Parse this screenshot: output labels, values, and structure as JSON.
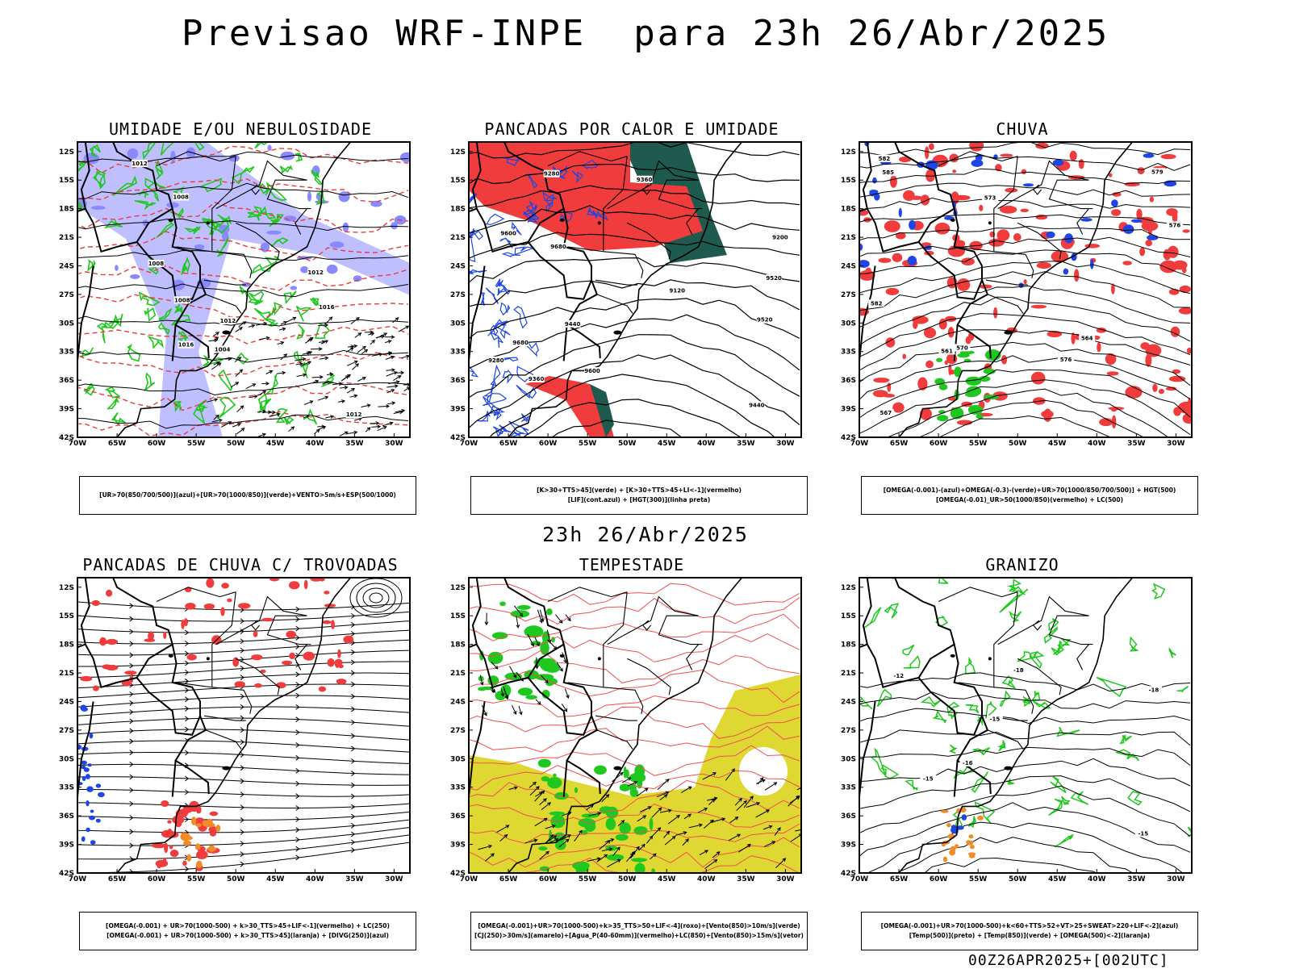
{
  "title": "Previsao WRF-INPE  para 23h 26/Abr/2025",
  "mid_title": "23h 26/Abr/2025",
  "footer": "00Z26APR2025+[002UTC]",
  "axes": {
    "lat": [
      "12S",
      "15S",
      "18S",
      "21S",
      "24S",
      "27S",
      "30S",
      "33S",
      "36S",
      "39S",
      "42S"
    ],
    "lon": [
      "70W",
      "65W",
      "60W",
      "55W",
      "50W",
      "45W",
      "40W",
      "35W",
      "30W"
    ]
  },
  "colors": {
    "red": "#f03c3c",
    "green": "#1ec81e",
    "darkgreen": "#1f5a4f",
    "blue": "#1e46e6",
    "lavender": "#b4b4ff",
    "yellow": "#e0d832",
    "orange": "#f08c28"
  },
  "panels": [
    {
      "id": "umidade",
      "title": "UMIDADE E/OU NEBULOSIDADE",
      "legend": [
        "[UR>70(850/700/500)](azul)+[UR>70(1000/850)](verde)+VENTO>5m/s+ESP(500/1000)"
      ],
      "contour_labels": [
        "1012",
        "1008",
        "1012",
        "1016",
        "1012",
        "1008",
        "1004",
        "1008",
        "1016",
        "1012"
      ]
    },
    {
      "id": "pancadas-calor",
      "title": "PANCADAS POR CALOR E UMIDADE",
      "legend": [
        "[K>30+TTS>45](verde) + [K>30+TTS>45+LI<-1](vermelho)",
        "[LIF](cont.azul) + [HGT(300)](linha preta)"
      ],
      "contour_labels": [
        "9680",
        "9680",
        "9600",
        "9600",
        "9520",
        "9520",
        "9440",
        "9440",
        "9360",
        "9280",
        "9360",
        "9280",
        "9120",
        "9200"
      ]
    },
    {
      "id": "chuva",
      "title": "CHUVA",
      "legend": [
        "[OMEGA(-0.001)-(azul)+OMEGA(-0.3)-(verde)+UR>70(1000/850/700/500)] + HGT(500)",
        "[OMEGA(-0.01)_UR>50(1000/850)(vermelho) + LC(500)"
      ],
      "contour_labels": [
        "585",
        "582",
        "582",
        "579",
        "576",
        "576",
        "573",
        "570",
        "567",
        "564",
        "561"
      ]
    },
    {
      "id": "pancadas-trovoadas",
      "title": "PANCADAS DE CHUVA C/ TROVOADAS",
      "legend": [
        "[OMEGA(-0.001) + UR>70(1000-500) + k>30_TTS>45+LIF<-1](vermelho) + LC(250)",
        "[OMEGA(-0.001) + UR>70(1000-500) + k>30_TTS>45](laranja) + [DIVG(250)](azul)"
      ],
      "contour_labels": []
    },
    {
      "id": "tempestade",
      "title": "TEMPESTADE",
      "legend": [
        "[OMEGA(-0.001)+UR>70(1000-500)+k>35_TTS>50+LIF<-4](roxo)+[Vento(850)>10m/s](verde)",
        "[CJ(250)>30m/s](amarelo)+[Agua_P(40-60mm)](vermelho)+LC(850)+[Vento(850)>15m/s](vetor)"
      ],
      "contour_labels": []
    },
    {
      "id": "granizo",
      "title": "GRANIZO",
      "legend": [
        "[OMEGA(-0.001)+UR>70(1000-500)+k<60+TTS>52+VT>25+SWEAT>220+LIF<-2](azul)",
        "[Temp(500)](preto) + [Temp(850)](verde) + [OMEGA(500)<-2](laranja)"
      ],
      "contour_labels": [
        "-15",
        "-12",
        "-15",
        "-18",
        "-16",
        "-18",
        "-15"
      ]
    }
  ]
}
